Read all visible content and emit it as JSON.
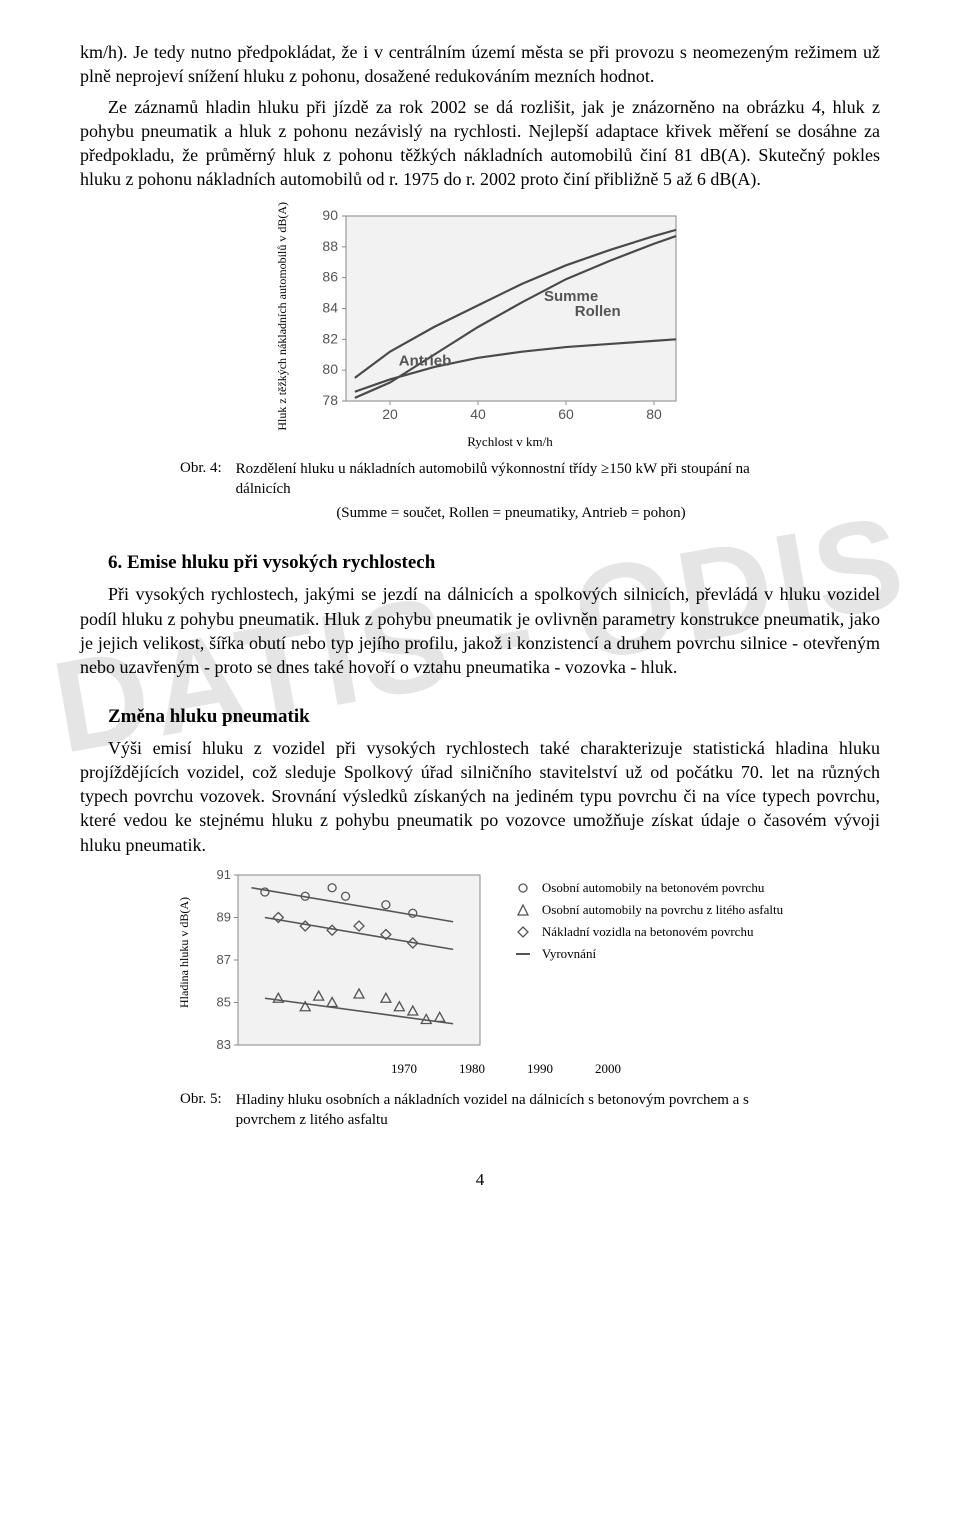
{
  "watermark": "DATIS - ODIS",
  "paragraphs": {
    "p1": "km/h). Je tedy nutno předpokládat, že i v centrálním území města se při provozu s neomezeným režimem už plně neprojeví snížení hluku z pohonu, dosažené redukováním mezních hodnot.",
    "p2": "Ze záznamů hladin hluku při jízdě za rok 2002 se dá rozlišit, jak je znázorněno na obrázku 4, hluk z pohybu pneumatik a hluk z pohonu nezávislý na rychlosti. Nejlepší adaptace křivek měření se dosáhne za předpokladu, že průměrný hluk z pohonu těžkých nákladních automobilů činí 81 dB(A). Skutečný pokles hluku z pohonu nákladních automobilů od r. 1975 do r. 2002 proto činí přibližně 5 až 6 dB(A).",
    "p3": "Při vysokých rychlostech, jakými se jezdí na dálnicích a spolkových silnicích, převládá v hluku vozidel podíl hluku z pohybu pneumatik. Hluk z pohybu pneumatik je ovlivněn parametry konstrukce pneumatik, jako je jejich velikost, šířka obutí nebo typ jejího profilu, jakož i konzistencí a druhem povrchu silnice - otevřeným nebo uzavřeným - proto se dnes také hovoří o vztahu pneumatika - vozovka - hluk.",
    "p4": "Výši emisí hluku z vozidel při vysokých rychlostech také charakterizuje statistická hladina hluku projíždějících vozidel, což sleduje Spolkový úřad silničního stavitelství už od počátku 70. let na různých typech povrchu vozovek. Srovnání výsledků získaných na jediném typu povrchu či na více typech povrchu, které vedou ke stejnému hluku z pohybu pneumatik po vozovce umožňuje získat údaje o časovém vývoji hluku pneumatik."
  },
  "section_heading": "6. Emise hluku při vysokých rychlostech",
  "sub_heading": "Změna hluku pneumatik",
  "page_number": "4",
  "chart4": {
    "type": "line",
    "y_label": "Hluk z těžkých nákladních automobilů v dB(A)",
    "x_label": "Rychlost v km/h",
    "x_ticks": [
      20,
      40,
      60,
      80
    ],
    "y_ticks": [
      78,
      80,
      82,
      84,
      86,
      88,
      90
    ],
    "ylim": [
      78,
      90
    ],
    "xlim": [
      10,
      85
    ],
    "bg": "#f2f2f2",
    "axis_color": "#888888",
    "line_color": "#4a4a4a",
    "text_color": "#555555",
    "series": {
      "summe": {
        "label": "Summe",
        "pts": [
          [
            12,
            79.5
          ],
          [
            20,
            81.2
          ],
          [
            30,
            82.8
          ],
          [
            40,
            84.2
          ],
          [
            50,
            85.6
          ],
          [
            60,
            86.8
          ],
          [
            70,
            87.8
          ],
          [
            80,
            88.7
          ],
          [
            85,
            89.1
          ]
        ]
      },
      "rollen": {
        "label": "Rollen",
        "pts": [
          [
            12,
            78.2
          ],
          [
            20,
            79.2
          ],
          [
            30,
            81.0
          ],
          [
            40,
            82.8
          ],
          [
            50,
            84.4
          ],
          [
            60,
            85.9
          ],
          [
            70,
            87.1
          ],
          [
            80,
            88.2
          ],
          [
            85,
            88.7
          ]
        ]
      },
      "antrieb": {
        "label": "Antrieb",
        "pts": [
          [
            12,
            78.6
          ],
          [
            20,
            79.4
          ],
          [
            30,
            80.2
          ],
          [
            40,
            80.8
          ],
          [
            50,
            81.2
          ],
          [
            60,
            81.5
          ],
          [
            70,
            81.7
          ],
          [
            80,
            81.9
          ],
          [
            85,
            82.0
          ]
        ]
      }
    },
    "fig_label": "Obr. 4:",
    "fig_caption": "Rozdělení hluku u nákladních automobilů výkonnostní třídy ≥150 kW při stoupání na dálnicích",
    "fig_legend": "(Summe = součet, Rollen = pneumatiky, Antrieb = pohon)"
  },
  "chart5": {
    "type": "scatter",
    "y_label": "Hladina hluku v dB(A)",
    "x_ticks": [
      "1970",
      "1980",
      "1990",
      "2000"
    ],
    "y_ticks": [
      83,
      85,
      87,
      89,
      91
    ],
    "ylim": [
      83,
      91
    ],
    "xlim": [
      1968,
      2004
    ],
    "bg": "#f2f2f2",
    "axis_color": "#888888",
    "marker_color": "#555555",
    "legend": [
      {
        "marker": "circle",
        "label": "Osobní automobily na betonovém povrchu"
      },
      {
        "marker": "triangle",
        "label": "Osobní automobily na povrchu z litého asfaltu"
      },
      {
        "marker": "diamond",
        "label": "Nákladní vozidla na betonovém povrchu"
      },
      {
        "marker": "line",
        "label": "Vyrovnání"
      }
    ],
    "circles": [
      [
        1972,
        90.2
      ],
      [
        1978,
        90.0
      ],
      [
        1982,
        90.4
      ],
      [
        1984,
        90.0
      ],
      [
        1990,
        89.6
      ],
      [
        1994,
        89.2
      ]
    ],
    "triangles": [
      [
        1974,
        85.2
      ],
      [
        1978,
        84.8
      ],
      [
        1980,
        85.3
      ],
      [
        1982,
        85.0
      ],
      [
        1986,
        85.4
      ],
      [
        1990,
        85.2
      ],
      [
        1992,
        84.8
      ],
      [
        1994,
        84.6
      ],
      [
        1996,
        84.2
      ],
      [
        1998,
        84.3
      ]
    ],
    "diamonds": [
      [
        1974,
        89.0
      ],
      [
        1978,
        88.6
      ],
      [
        1982,
        88.4
      ],
      [
        1986,
        88.6
      ],
      [
        1990,
        88.2
      ],
      [
        1994,
        87.8
      ]
    ],
    "fit_lines": [
      [
        [
          1970,
          90.4
        ],
        [
          2000,
          88.8
        ]
      ],
      [
        [
          1972,
          89.0
        ],
        [
          2000,
          87.5
        ]
      ],
      [
        [
          1972,
          85.2
        ],
        [
          2000,
          84.0
        ]
      ]
    ],
    "fig_label": "Obr. 5:",
    "fig_caption": "Hladiny hluku osobních a nákladních vozidel na dálnicích s betonovým povrchem a s povrchem z litého asfaltu"
  }
}
